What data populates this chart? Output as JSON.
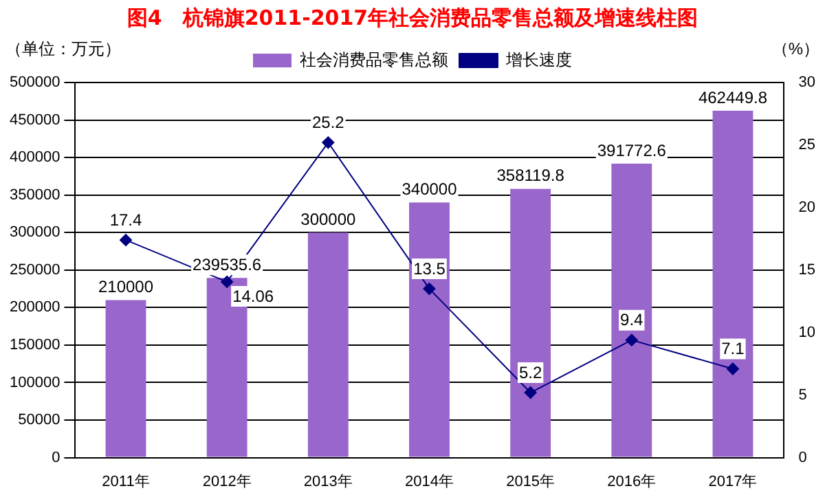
{
  "chart_data": {
    "type": "bar",
    "title": "图4　杭锦旗2011-2017年社会消费品零售总额及增速线柱图",
    "ylabel": "（单位：万元）",
    "y2label": "（%）",
    "categories": [
      "2011年",
      "2012年",
      "2013年",
      "2014年",
      "2015年",
      "2016年",
      "2017年"
    ],
    "series": [
      {
        "name": "社会消费品零售总额",
        "color": "#9966cc",
        "values": [
          210000,
          239535.6,
          300000,
          340000,
          358119.8,
          391772.6,
          462449.8
        ]
      },
      {
        "name": "增长速度",
        "type": "line",
        "axis": "y2",
        "color": "#000080",
        "values": [
          17.4,
          14.06,
          25.2,
          13.5,
          5.2,
          9.4,
          7.1
        ]
      }
    ],
    "ylim": [
      0,
      500000
    ],
    "yticks": [
      0,
      50000,
      100000,
      150000,
      200000,
      250000,
      300000,
      350000,
      400000,
      450000,
      500000
    ],
    "y2lim": [
      0,
      30
    ],
    "y2ticks": [
      0,
      5,
      10,
      15,
      20,
      25,
      30
    ],
    "grid": "y",
    "legend": "top",
    "marker": "diamond",
    "line_style": "solid",
    "data_labels": true
  }
}
